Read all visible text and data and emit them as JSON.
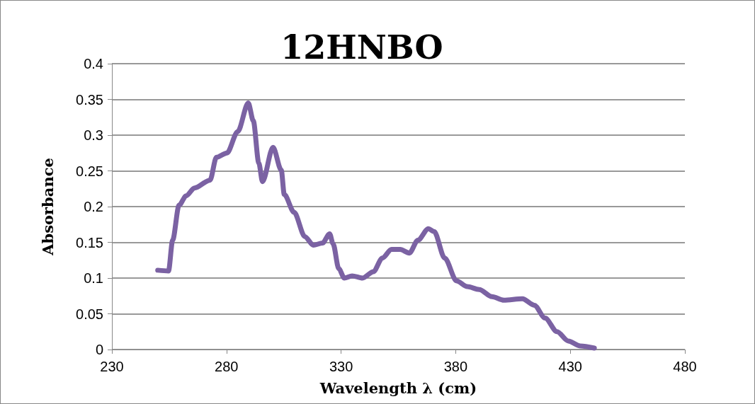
{
  "chart_data": {
    "type": "line",
    "title": "12HNBO",
    "xlabel": "Wavelength λ (cm)",
    "ylabel": "Absorbance",
    "x": [
      250,
      254.7,
      256.5,
      259.3,
      262.4,
      266,
      272.8,
      275.6,
      280.2,
      284.9,
      289.5,
      291.7,
      294.1,
      295.7,
      300.3,
      303.9,
      305.2,
      309.5,
      314.2,
      317.9,
      321.9,
      325,
      326.5,
      329,
      331.4,
      334.8,
      339.4,
      344.1,
      348,
      352,
      355.8,
      359.8,
      363.5,
      368.1,
      370.6,
      375.2,
      380.4,
      385,
      390.3,
      395.8,
      401,
      409.1,
      414.3,
      419,
      424.2,
      429.1,
      434.4,
      440.5
    ],
    "series": [
      {
        "color": "#7b62a3",
        "values": [
          0.111,
          0.11,
          0.153,
          0.202,
          0.215,
          0.226,
          0.237,
          0.269,
          0.275,
          0.305,
          0.345,
          0.32,
          0.261,
          0.235,
          0.283,
          0.251,
          0.217,
          0.192,
          0.158,
          0.146,
          0.149,
          0.162,
          0.148,
          0.113,
          0.1,
          0.103,
          0.1,
          0.109,
          0.128,
          0.14,
          0.14,
          0.135,
          0.153,
          0.169,
          0.165,
          0.128,
          0.096,
          0.088,
          0.084,
          0.074,
          0.069,
          0.071,
          0.062,
          0.044,
          0.025,
          0.012,
          0.005,
          0.002
        ]
      }
    ],
    "xlim": [
      230,
      480
    ],
    "xticks": [
      230,
      280,
      330,
      380,
      430,
      480
    ],
    "ylim": [
      0,
      0.4
    ],
    "yticks": [
      0,
      0.05,
      0.1,
      0.15,
      0.2,
      0.25,
      0.3,
      0.35,
      0.4
    ],
    "grid": "y",
    "marker": "none",
    "line_style": "solid"
  }
}
